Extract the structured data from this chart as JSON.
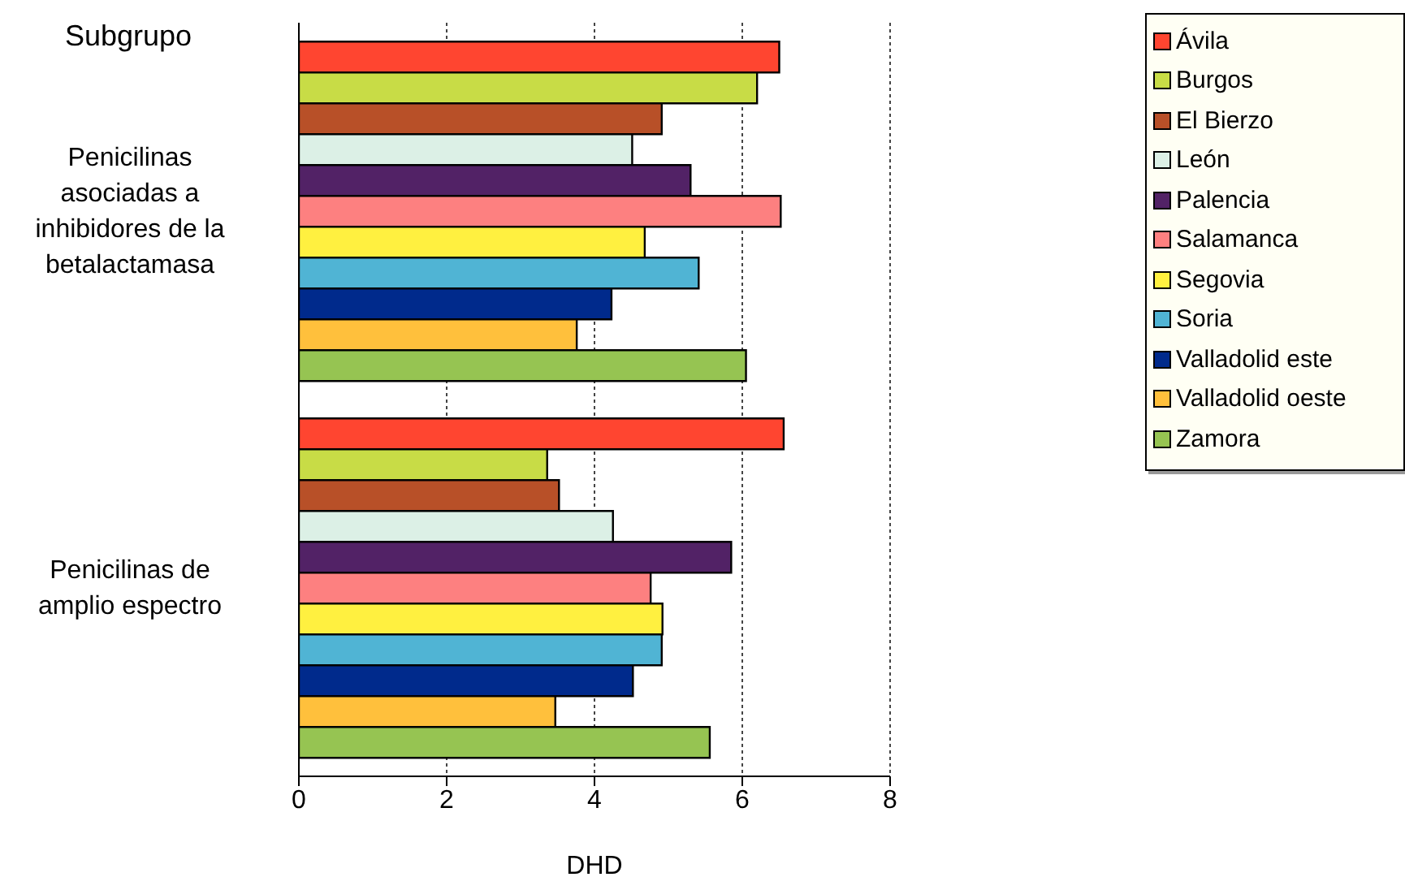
{
  "chart_data": {
    "type": "bar",
    "orientation": "horizontal",
    "ylabel": "Subgrupo",
    "xlabel": "DHD",
    "categories": [
      "Penicilinas asociadas a inhibidores de la betalactamasa",
      "Penicilinas de amplio espectro"
    ],
    "series": [
      {
        "name": "Ávila",
        "color": "#ff4530",
        "values": [
          6.5,
          6.56
        ]
      },
      {
        "name": "Burgos",
        "color": "#c8dc46",
        "values": [
          6.2,
          3.36
        ]
      },
      {
        "name": "El Bierzo",
        "color": "#b85028",
        "values": [
          4.91,
          3.52
        ]
      },
      {
        "name": "León",
        "color": "#dcf0e6",
        "values": [
          4.51,
          4.25
        ]
      },
      {
        "name": "Palencia",
        "color": "#522266",
        "values": [
          5.3,
          5.85
        ]
      },
      {
        "name": "Salamanca",
        "color": "#fd8080",
        "values": [
          6.52,
          4.76
        ]
      },
      {
        "name": "Segovia",
        "color": "#fff040",
        "values": [
          4.68,
          4.92
        ]
      },
      {
        "name": "Soria",
        "color": "#50b4d4",
        "values": [
          5.41,
          4.91
        ]
      },
      {
        "name": "Valladolid este",
        "color": "#002a8c",
        "values": [
          4.23,
          4.52
        ]
      },
      {
        "name": "Valladolid oeste",
        "color": "#ffc03c",
        "values": [
          3.76,
          3.47
        ]
      },
      {
        "name": "Zamora",
        "color": "#96c452",
        "values": [
          6.05,
          5.56
        ]
      }
    ],
    "xlim": [
      0,
      8
    ],
    "xticks": [
      0,
      2,
      4,
      6,
      8
    ],
    "grid": "x",
    "legend": "right"
  }
}
